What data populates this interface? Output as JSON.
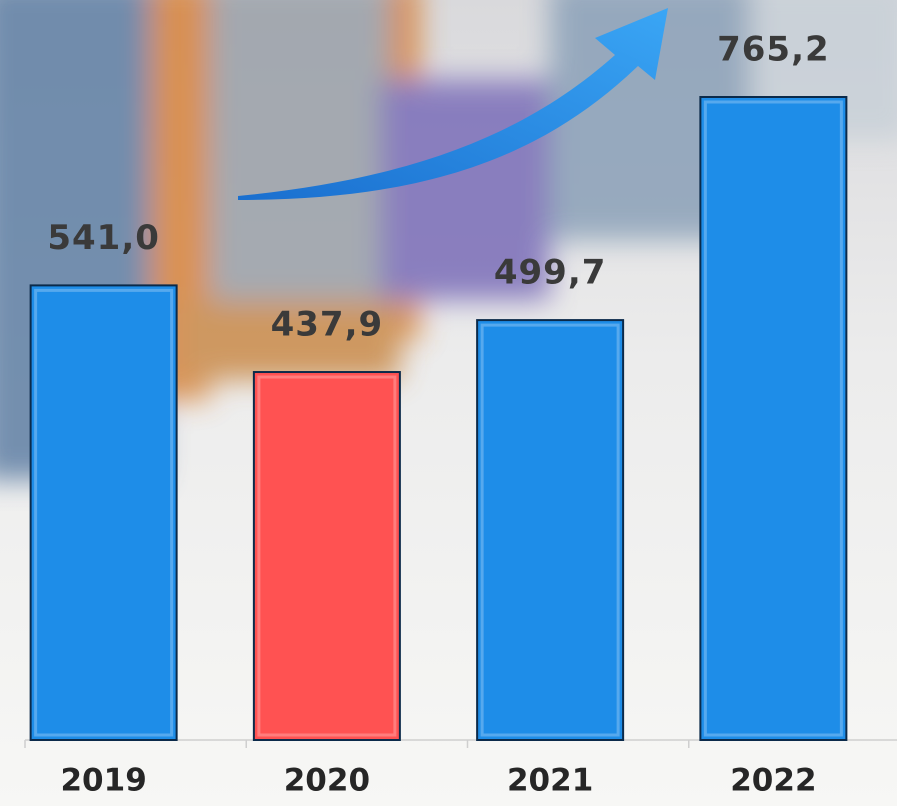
{
  "chart_data": {
    "type": "bar",
    "categories": [
      "2019",
      "2020",
      "2021",
      "2022"
    ],
    "values": [
      541.0,
      437.9,
      499.7,
      765.2
    ],
    "value_labels": [
      "541,0",
      "437,9",
      "499,7",
      "765,2"
    ],
    "colors": [
      "#1e8de8",
      "#ff5252",
      "#1e8de8",
      "#1e8de8"
    ]
  }
}
